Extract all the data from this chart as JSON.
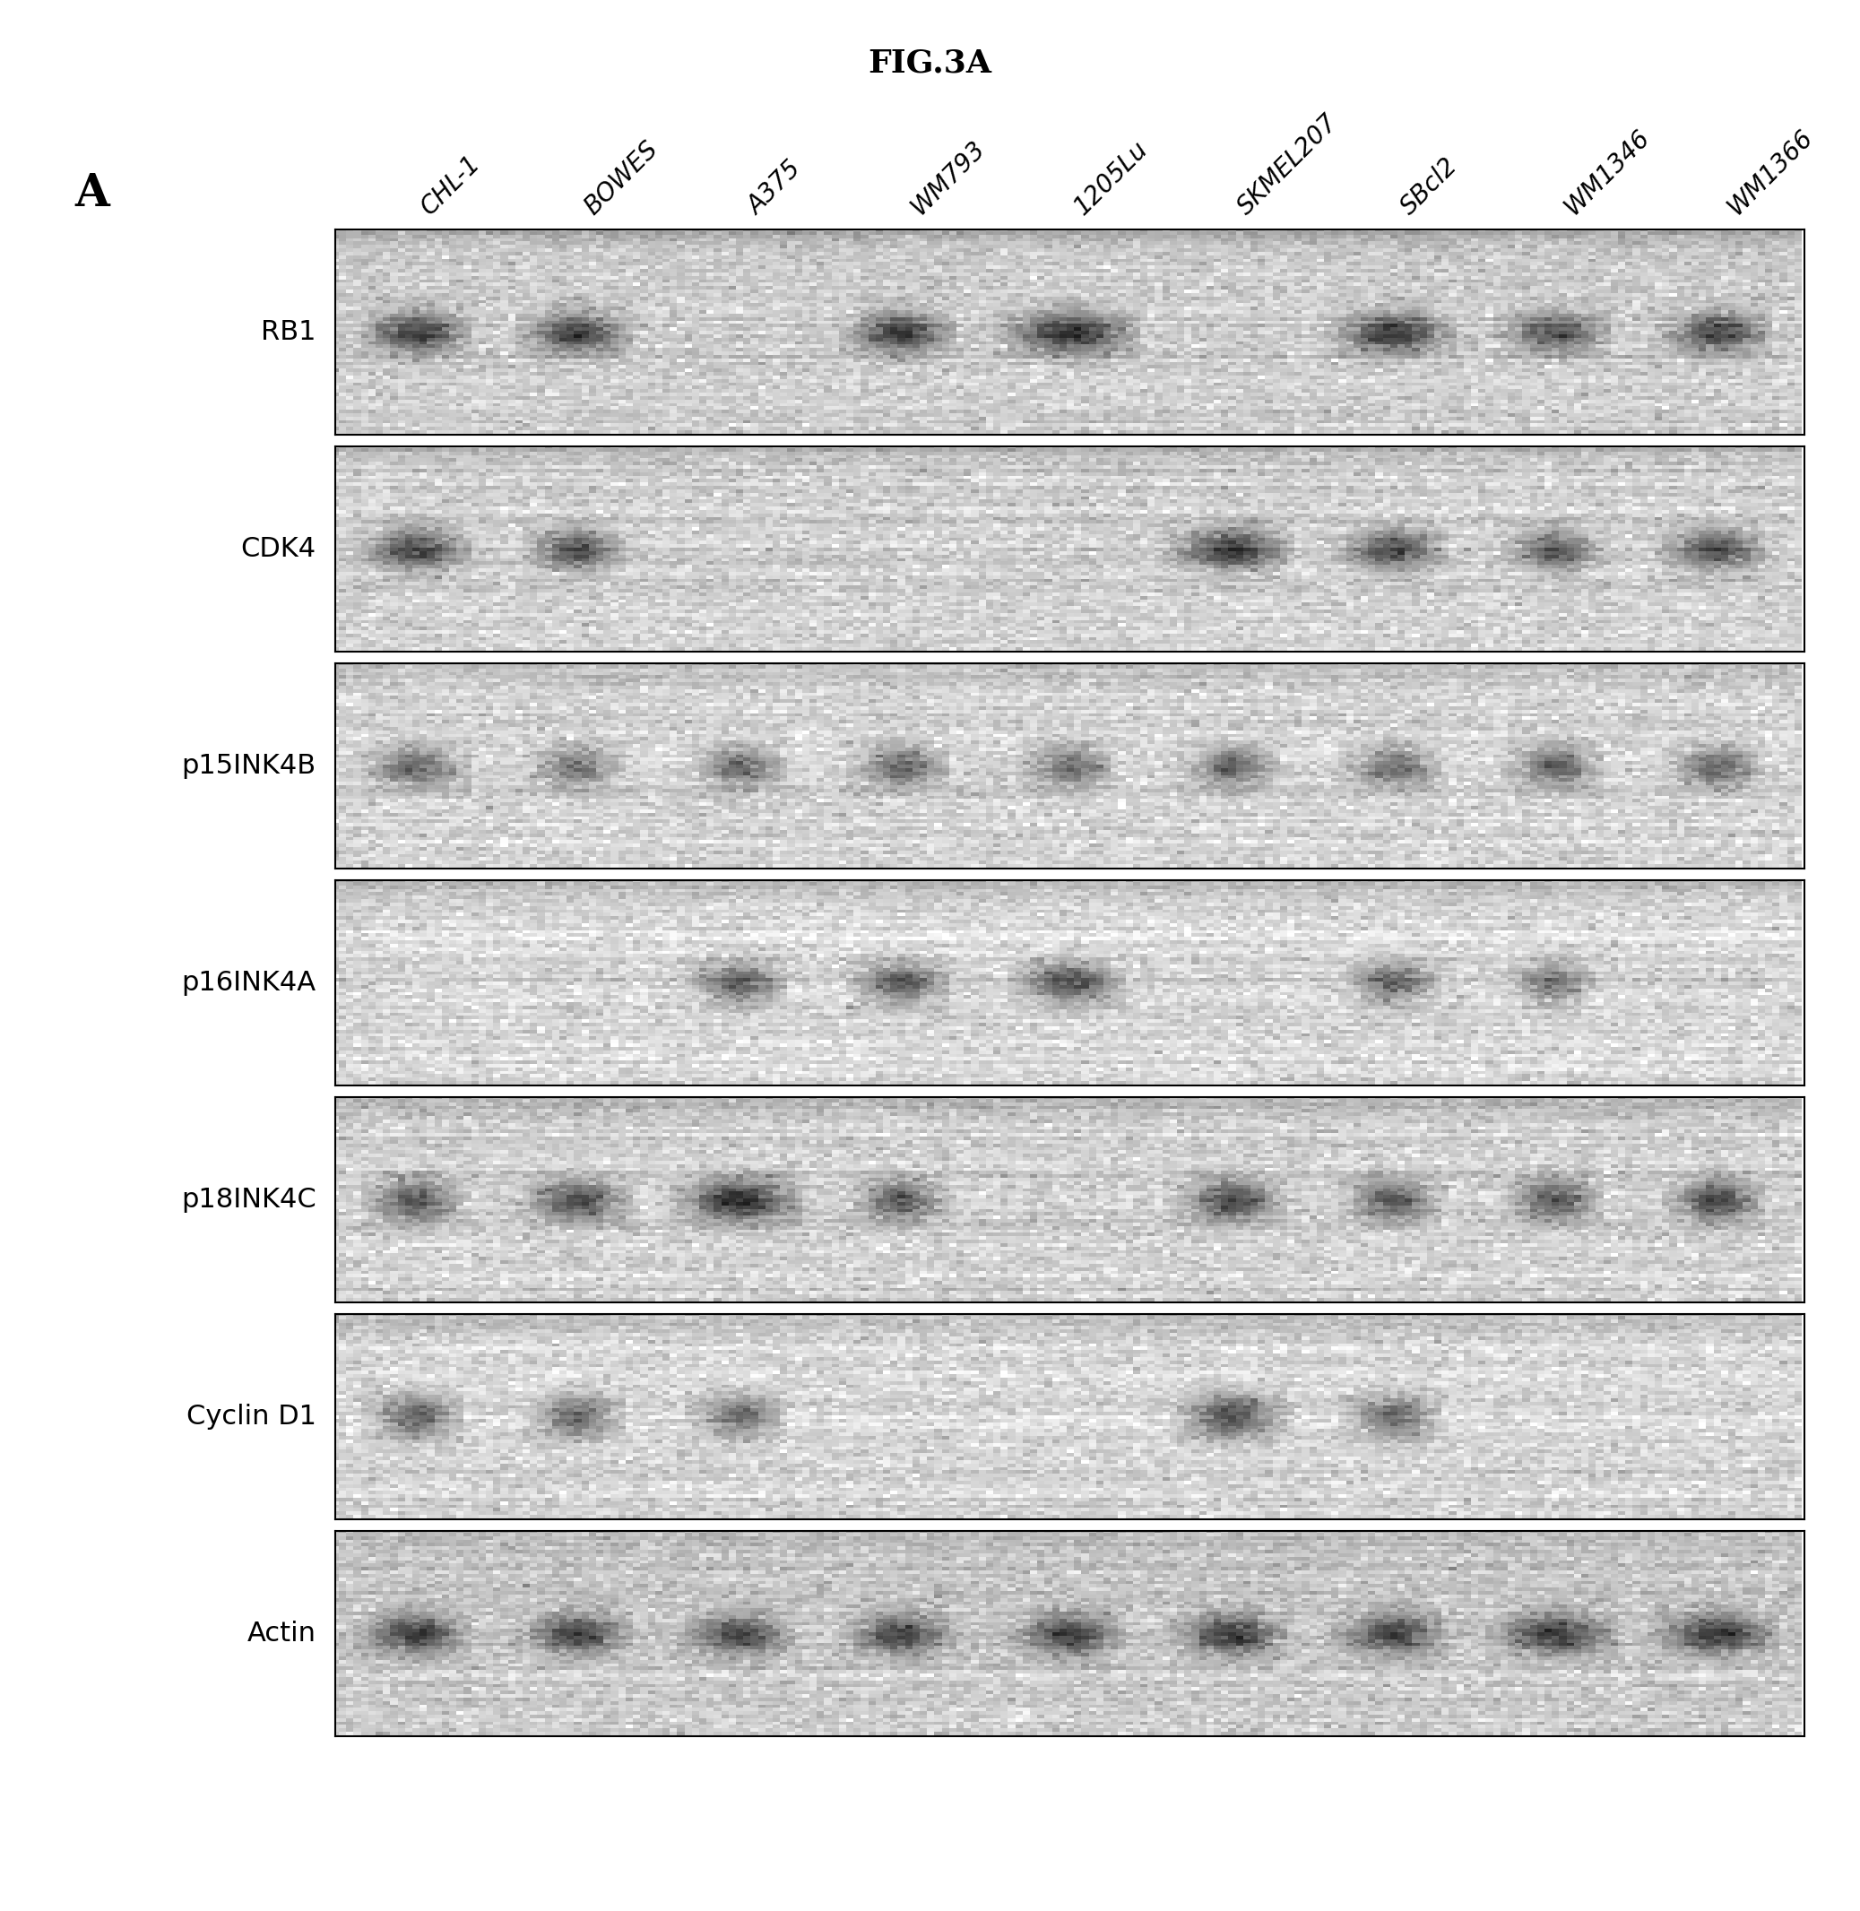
{
  "title": "FIG.3A",
  "panel_label": "A",
  "column_labels": [
    "CHL-1",
    "BOWES",
    "A375",
    "WM793",
    "1205Lu",
    "SKMEL207",
    "SBcl2",
    "WM1346",
    "WM1366"
  ],
  "row_labels": [
    "RB1",
    "CDK4",
    "p15INK4B",
    "p16INK4A",
    "p18INK4C",
    "Cyclin D1",
    "Actin"
  ],
  "background_color": "#ffffff",
  "blot_bg_light": "#d8d8d8",
  "blot_bg_dark": "#b0b0b0",
  "band_color_dark": "#1a1a1a",
  "band_color_mid": "#555555",
  "band_color_light": "#888888",
  "title_fontsize": 26,
  "label_fontsize": 22,
  "col_label_fontsize": 20,
  "panel_label_fontsize": 36
}
